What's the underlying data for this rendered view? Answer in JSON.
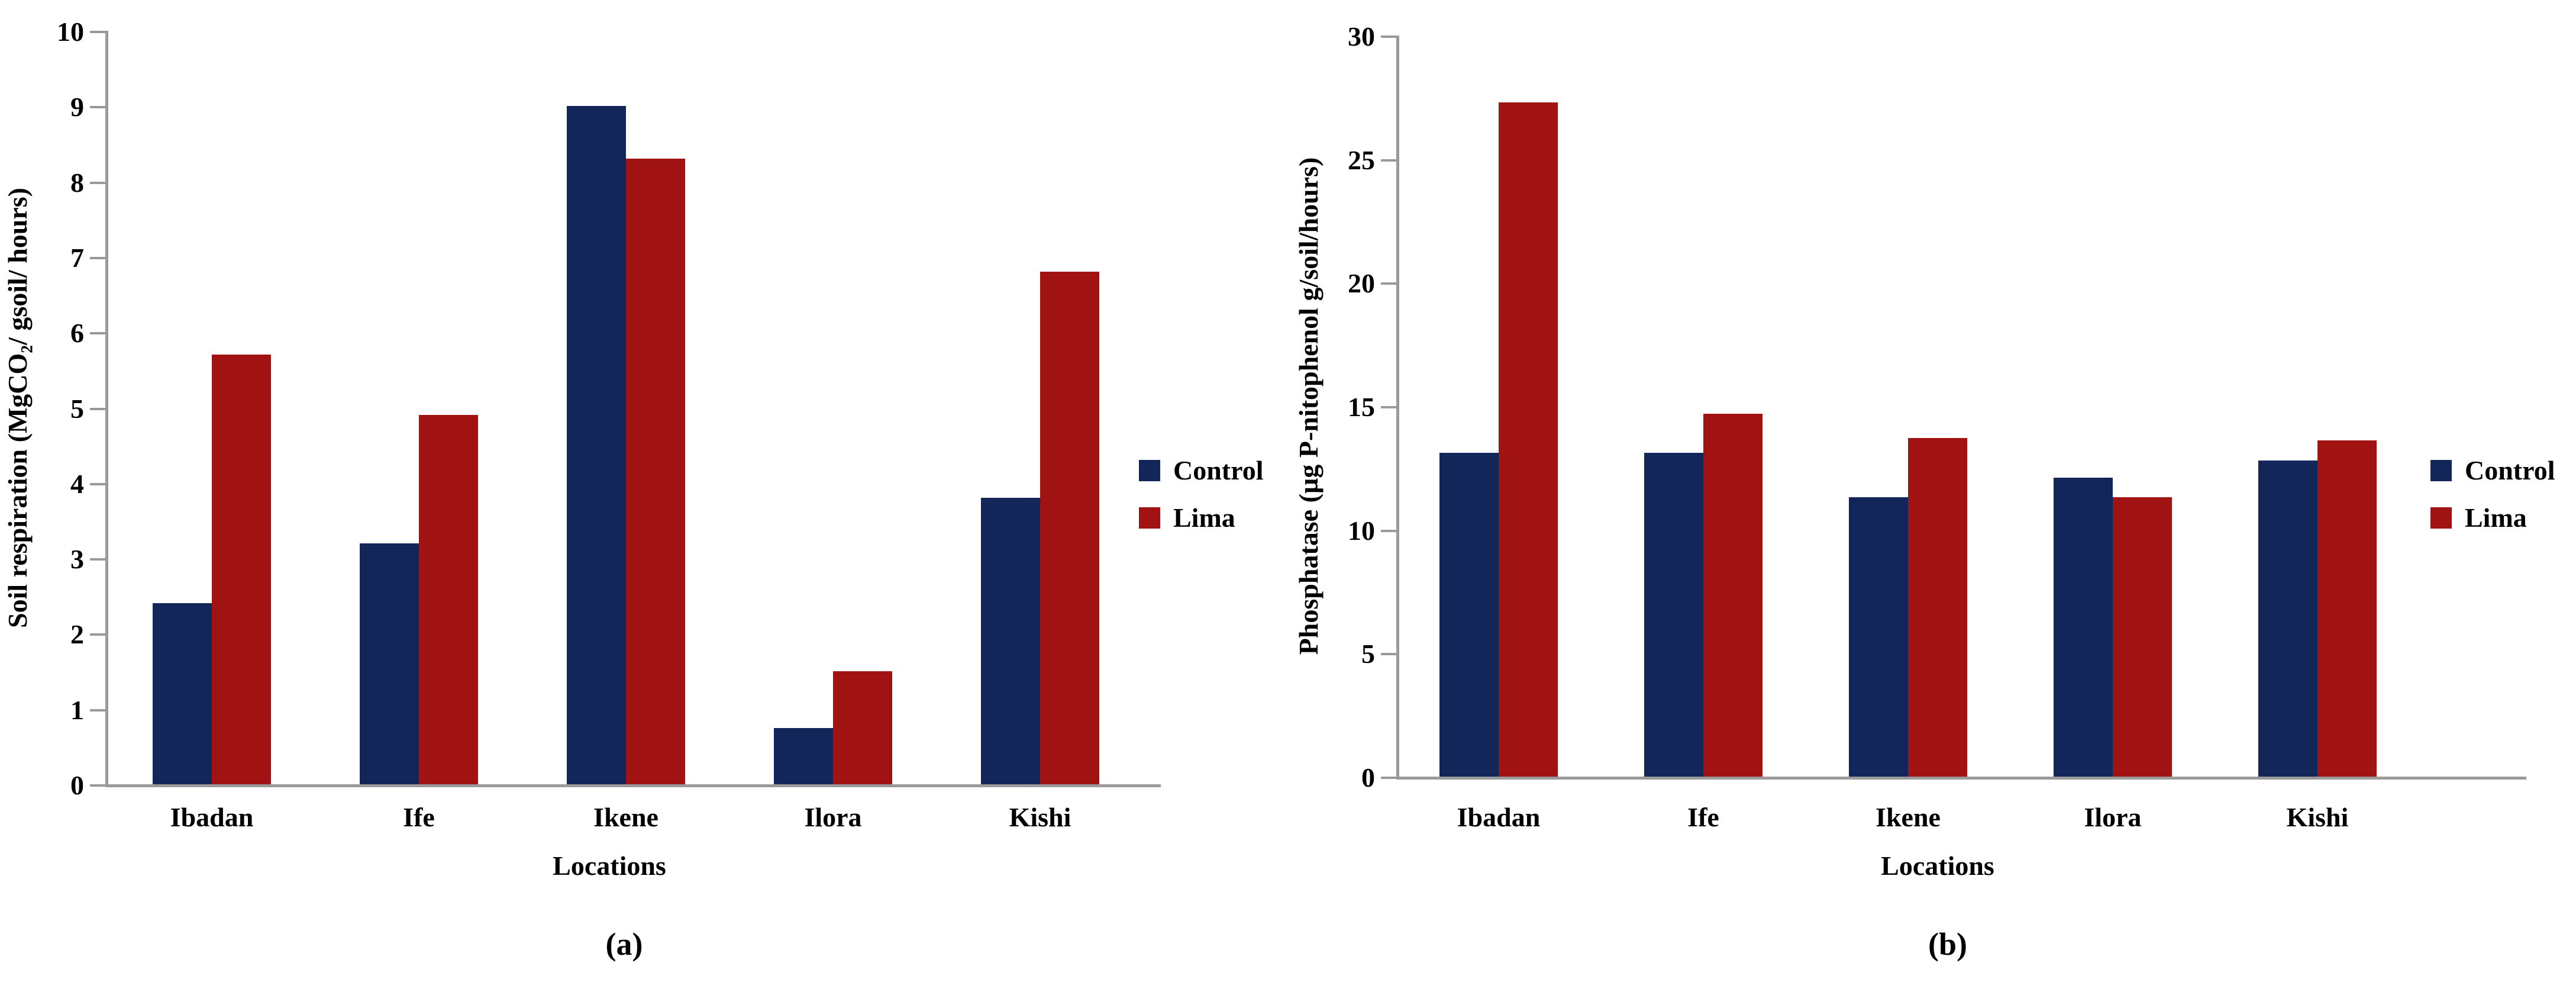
{
  "figure": {
    "background": "#ffffff",
    "axis_color": "#9a9a9a",
    "control_color": "#12265A",
    "lima_color": "#A11212"
  },
  "chart_data": [
    {
      "id": "a",
      "type": "bar",
      "caption": "(a)",
      "title": "",
      "xlabel": "Locations",
      "ylabel": "Soil respiration (MgCO₂/ gsoil/ hours)",
      "ylim": [
        0,
        10
      ],
      "ytick_step": 1,
      "yticks": [
        0,
        1,
        2,
        3,
        4,
        5,
        6,
        7,
        8,
        9,
        10
      ],
      "grid": false,
      "legend_position": "right",
      "categories": [
        "Ibadan",
        "Ife",
        "Ikene",
        "Ilora",
        "Kishi"
      ],
      "series": [
        {
          "name": "Control",
          "color": "#12265A",
          "values": [
            2.4,
            3.2,
            9.0,
            0.75,
            3.8
          ]
        },
        {
          "name": "Lima",
          "color": "#A11212",
          "values": [
            5.7,
            4.9,
            8.3,
            1.5,
            6.8
          ]
        }
      ]
    },
    {
      "id": "b",
      "type": "bar",
      "caption": "(b)",
      "title": "",
      "xlabel": "Locations",
      "ylabel": "Phosphatase (µg P-nitophenol g/soil/hours)",
      "ylim": [
        0,
        30
      ],
      "ytick_step": 5,
      "yticks": [
        0,
        5,
        10,
        15,
        20,
        25,
        30
      ],
      "grid": false,
      "legend_position": "right",
      "categories": [
        "Ibadan",
        "Ife",
        "Ikene",
        "Ilora",
        "Kishi"
      ],
      "series": [
        {
          "name": "Control",
          "color": "#12265A",
          "values": [
            13.1,
            13.1,
            11.3,
            12.1,
            12.8
          ]
        },
        {
          "name": "Lima",
          "color": "#A11212",
          "values": [
            27.3,
            14.7,
            13.7,
            11.3,
            13.6
          ]
        }
      ]
    }
  ]
}
